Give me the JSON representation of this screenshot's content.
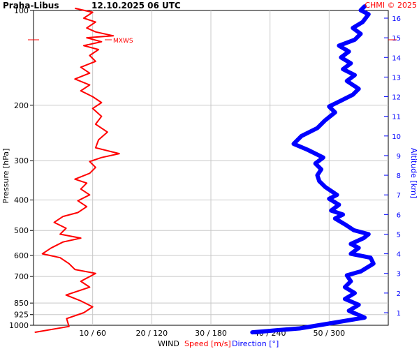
{
  "header": {
    "station": "Praha-Libus",
    "datetime": "12.10.2025 06 UTC",
    "credit": "CHMI © 2025"
  },
  "annotations": {
    "max_wind": "MXWS"
  },
  "colors": {
    "speed": "#ff0000",
    "direction": "#0000ff",
    "grid": "#c8c8c8",
    "axis": "#000000"
  },
  "chart_data": {
    "type": "line",
    "grid": true,
    "axes": {
      "left": {
        "label": "Pressure [hPa]",
        "scale": "log",
        "range": [
          1000,
          100
        ],
        "ticks": [
          1000,
          925,
          850,
          700,
          600,
          500,
          400,
          300,
          200,
          100
        ]
      },
      "right": {
        "label": "Altitude [km]",
        "range": [
          0,
          16.5
        ],
        "ticks": [
          1,
          2,
          3,
          4,
          5,
          6,
          7,
          8,
          9,
          10,
          11,
          12,
          13,
          14,
          15,
          16
        ]
      },
      "bottom": {
        "title": "WIND",
        "speed_label": "Speed [m/s]",
        "direction_label": "Direction [°]",
        "tick_labels": [
          "10 / 60",
          "20 / 120",
          "30 / 180",
          "40 / 240",
          "50 / 300"
        ],
        "speed_range": [
          0,
          60
        ],
        "direction_range": [
          0,
          360
        ]
      }
    },
    "series": [
      {
        "name": "Speed [m/s]",
        "color": "#ff0000",
        "points": [
          [
            0.2,
            0
          ],
          [
            6.0,
            0.3
          ],
          [
            5.6,
            0.7
          ],
          [
            8.5,
            1.0
          ],
          [
            10.0,
            1.3
          ],
          [
            8.0,
            1.6
          ],
          [
            5.5,
            1.9
          ],
          [
            9.5,
            2.3
          ],
          [
            8.0,
            2.6
          ],
          [
            10.5,
            3.0
          ],
          [
            7.0,
            3.2
          ],
          [
            6.0,
            3.5
          ],
          [
            4.5,
            3.8
          ],
          [
            1.5,
            4.0
          ],
          [
            3.0,
            4.3
          ],
          [
            5.0,
            4.6
          ],
          [
            8.0,
            4.8
          ],
          [
            4.5,
            5.0
          ],
          [
            5.5,
            5.3
          ],
          [
            3.5,
            5.6
          ],
          [
            5.0,
            5.9
          ],
          [
            7.5,
            6.1
          ],
          [
            9.0,
            6.4
          ],
          [
            7.5,
            6.7
          ],
          [
            9.5,
            7.0
          ],
          [
            8.0,
            7.3
          ],
          [
            9.0,
            7.6
          ],
          [
            7.0,
            7.8
          ],
          [
            9.5,
            8.1
          ],
          [
            10.5,
            8.4
          ],
          [
            9.5,
            8.7
          ],
          [
            11.5,
            8.9
          ],
          [
            14.5,
            9.1
          ],
          [
            10.5,
            9.4
          ],
          [
            11.0,
            9.8
          ],
          [
            12.5,
            10.2
          ],
          [
            10.5,
            10.6
          ],
          [
            11.5,
            11.0
          ],
          [
            10.0,
            11.4
          ],
          [
            11.5,
            11.7
          ],
          [
            10.0,
            12.0
          ],
          [
            8.0,
            12.3
          ],
          [
            9.5,
            12.6
          ],
          [
            7.0,
            12.9
          ],
          [
            9.5,
            13.2
          ],
          [
            8.0,
            13.5
          ],
          [
            10.5,
            13.8
          ],
          [
            9.5,
            14.1
          ],
          [
            11.0,
            14.4
          ],
          [
            8.5,
            14.6
          ],
          [
            11.5,
            14.8
          ],
          [
            9.0,
            15.0
          ],
          [
            13.5,
            15.1
          ],
          [
            10.5,
            15.3
          ],
          [
            9.0,
            15.5
          ],
          [
            10.5,
            15.8
          ],
          [
            8.5,
            16.0
          ],
          [
            10.0,
            16.3
          ],
          [
            7.0,
            16.5
          ]
        ]
      },
      {
        "name": "Direction [°]",
        "color": "#0000ff",
        "points": [
          [
            222,
            0
          ],
          [
            246,
            0.1
          ],
          [
            270,
            0.2
          ],
          [
            300,
            0.45
          ],
          [
            336,
            0.75
          ],
          [
            320,
            1.1
          ],
          [
            330,
            1.4
          ],
          [
            316,
            1.7
          ],
          [
            326,
            2.0
          ],
          [
            316,
            2.3
          ],
          [
            322,
            2.6
          ],
          [
            318,
            2.9
          ],
          [
            332,
            3.1
          ],
          [
            345,
            3.5
          ],
          [
            342,
            3.8
          ],
          [
            322,
            4.0
          ],
          [
            330,
            4.3
          ],
          [
            322,
            4.5
          ],
          [
            335,
            4.8
          ],
          [
            340,
            5.0
          ],
          [
            325,
            5.2
          ],
          [
            316,
            5.5
          ],
          [
            306,
            5.8
          ],
          [
            314,
            6.0
          ],
          [
            302,
            6.2
          ],
          [
            310,
            6.5
          ],
          [
            300,
            6.8
          ],
          [
            308,
            7.0
          ],
          [
            296,
            7.4
          ],
          [
            290,
            7.7
          ],
          [
            288,
            8.0
          ],
          [
            292,
            8.3
          ],
          [
            286,
            8.6
          ],
          [
            294,
            8.9
          ],
          [
            278,
            9.3
          ],
          [
            264,
            9.6
          ],
          [
            272,
            10.0
          ],
          [
            288,
            10.4
          ],
          [
            296,
            10.8
          ],
          [
            306,
            11.2
          ],
          [
            300,
            11.5
          ],
          [
            312,
            11.8
          ],
          [
            324,
            12.1
          ],
          [
            330,
            12.4
          ],
          [
            318,
            12.8
          ],
          [
            326,
            13.1
          ],
          [
            314,
            13.4
          ],
          [
            322,
            13.7
          ],
          [
            312,
            14.0
          ],
          [
            320,
            14.3
          ],
          [
            310,
            14.6
          ],
          [
            326,
            14.9
          ],
          [
            332,
            15.2
          ],
          [
            324,
            15.5
          ],
          [
            334,
            15.8
          ],
          [
            340,
            16.2
          ],
          [
            332,
            16.4
          ],
          [
            336,
            16.6
          ]
        ]
      }
    ]
  }
}
